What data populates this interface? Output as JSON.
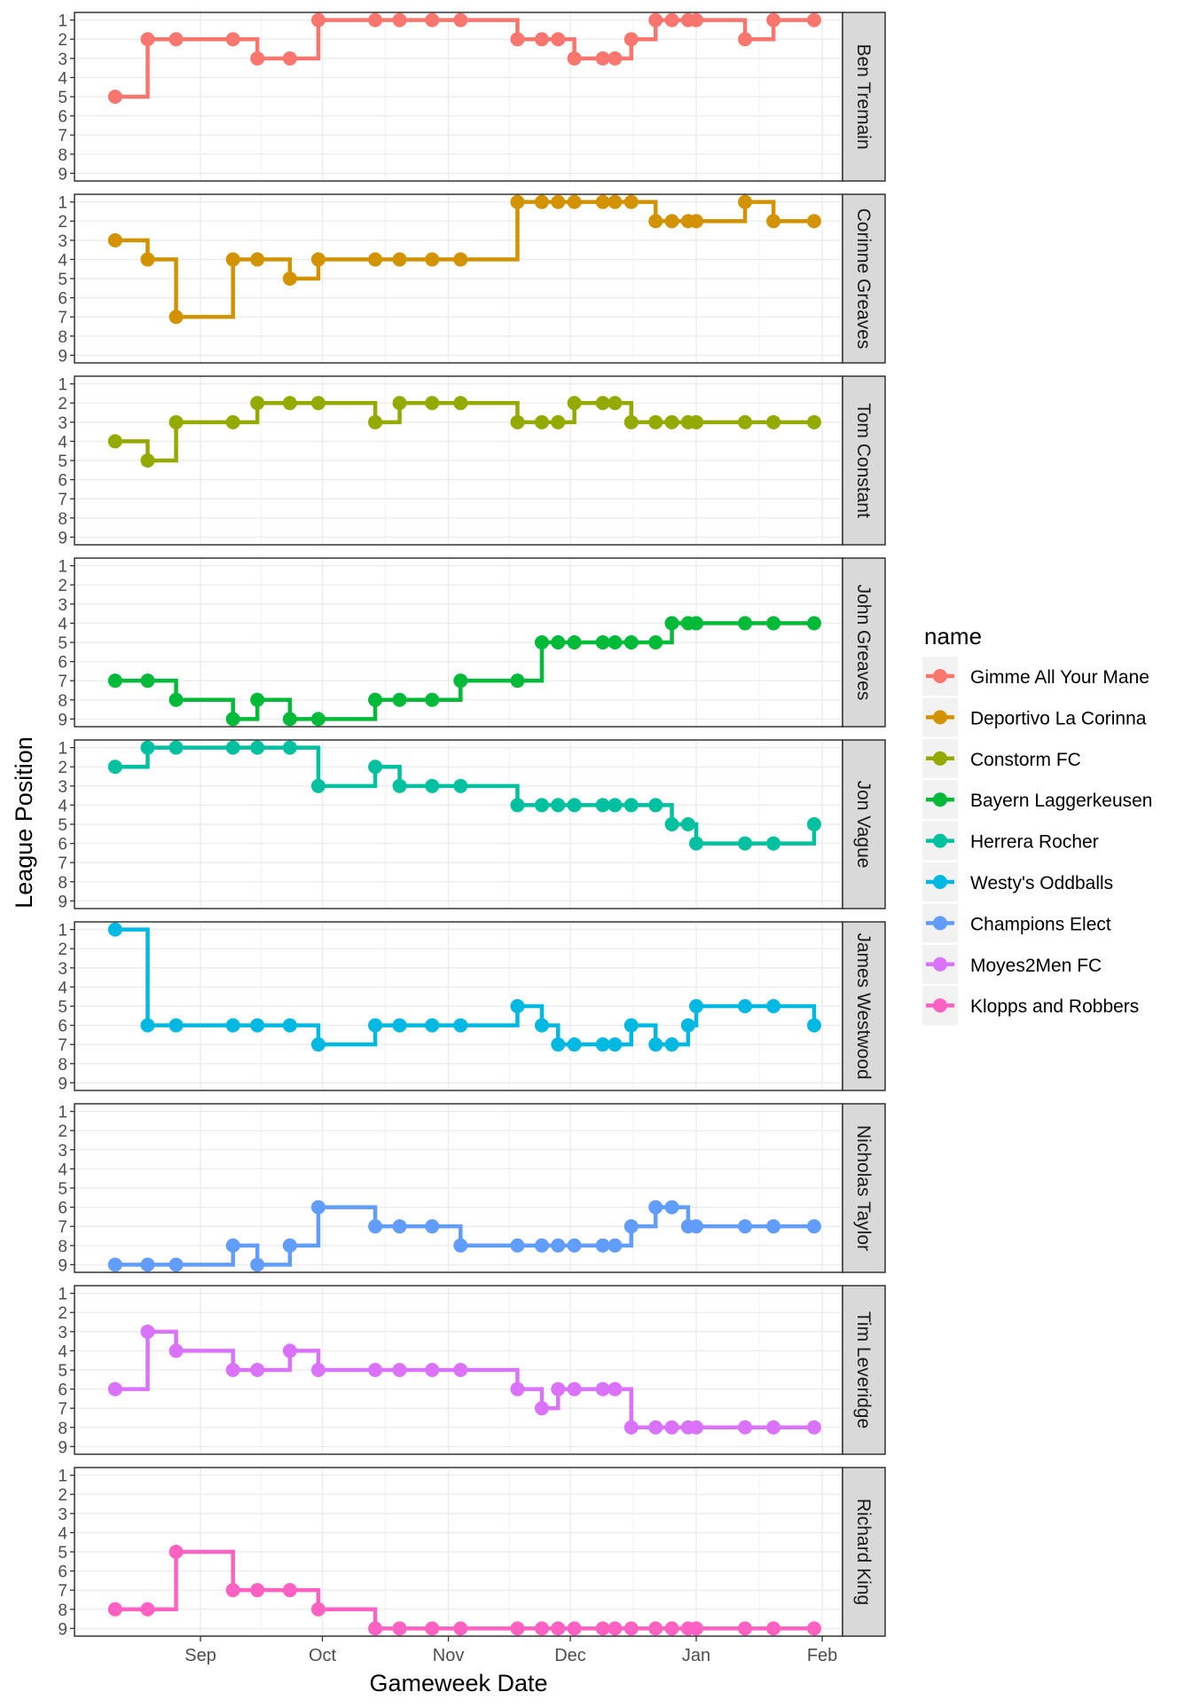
{
  "chart_data": {
    "type": "line",
    "step": "hv",
    "facet": "rows",
    "xlabel": "Gameweek Date",
    "ylabel": "League Position",
    "legend_title": "name",
    "legend_position": "right",
    "x_ticks": [
      {
        "date": "2017-09-01",
        "label": "Sep"
      },
      {
        "date": "2017-10-01",
        "label": "Oct"
      },
      {
        "date": "2017-11-01",
        "label": "Nov"
      },
      {
        "date": "2017-12-01",
        "label": "Dec"
      },
      {
        "date": "2018-01-01",
        "label": "Jan"
      },
      {
        "date": "2018-02-01",
        "label": "Feb"
      }
    ],
    "xlim": [
      "2017-08-01",
      "2018-02-06"
    ],
    "y_ticks": [
      1,
      2,
      3,
      4,
      5,
      6,
      7,
      8,
      9
    ],
    "y_reversed": true,
    "ylim": [
      0.6,
      9.4
    ],
    "x": [
      "2017-08-11",
      "2017-08-19",
      "2017-08-26",
      "2017-09-09",
      "2017-09-15",
      "2017-09-23",
      "2017-09-30",
      "2017-10-14",
      "2017-10-20",
      "2017-10-28",
      "2017-11-04",
      "2017-11-18",
      "2017-11-24",
      "2017-11-28",
      "2017-12-02",
      "2017-12-09",
      "2017-12-12",
      "2017-12-16",
      "2017-12-22",
      "2017-12-26",
      "2017-12-30",
      "2018-01-01",
      "2018-01-13",
      "2018-01-20",
      "2018-01-30"
    ],
    "series": [
      {
        "name": "Gimme All Your Mane",
        "facet": "Ben Tremain",
        "color": "#F8766D",
        "values": [
          5,
          2,
          2,
          2,
          3,
          3,
          1,
          1,
          1,
          1,
          1,
          2,
          2,
          2,
          3,
          3,
          3,
          2,
          1,
          1,
          1,
          1,
          2,
          1,
          1
        ]
      },
      {
        "name": "Deportivo La Corinna",
        "facet": "Corinne Greaves",
        "color": "#D39200",
        "values": [
          3,
          4,
          7,
          4,
          4,
          5,
          4,
          4,
          4,
          4,
          4,
          1,
          1,
          1,
          1,
          1,
          1,
          1,
          2,
          2,
          2,
          2,
          1,
          2,
          2
        ]
      },
      {
        "name": "Constorm FC",
        "facet": "Tom Constant",
        "color": "#93AA00",
        "values": [
          4,
          5,
          3,
          3,
          2,
          2,
          2,
          3,
          2,
          2,
          2,
          3,
          3,
          3,
          2,
          2,
          2,
          3,
          3,
          3,
          3,
          3,
          3,
          3,
          3
        ]
      },
      {
        "name": "Bayern Laggerkeusen",
        "facet": "John Greaves",
        "color": "#00BA38",
        "values": [
          7,
          7,
          8,
          9,
          8,
          9,
          9,
          8,
          8,
          8,
          7,
          7,
          5,
          5,
          5,
          5,
          5,
          5,
          5,
          4,
          4,
          4,
          4,
          4,
          4
        ]
      },
      {
        "name": "Herrera Rocher",
        "facet": "Jon Vague",
        "color": "#00C19F",
        "values": [
          2,
          1,
          1,
          1,
          1,
          1,
          3,
          2,
          3,
          3,
          3,
          4,
          4,
          4,
          4,
          4,
          4,
          4,
          4,
          5,
          5,
          6,
          6,
          6,
          5
        ]
      },
      {
        "name": "Westy's Oddballs",
        "facet": "James Westwood",
        "color": "#00B9E3",
        "values": [
          1,
          6,
          6,
          6,
          6,
          6,
          7,
          6,
          6,
          6,
          6,
          5,
          6,
          7,
          7,
          7,
          7,
          6,
          7,
          7,
          6,
          5,
          5,
          5,
          6
        ]
      },
      {
        "name": "Champions Elect",
        "facet": "Nicholas Taylor",
        "color": "#619CFF",
        "values": [
          9,
          9,
          9,
          8,
          9,
          8,
          6,
          7,
          7,
          7,
          8,
          8,
          8,
          8,
          8,
          8,
          8,
          7,
          6,
          6,
          7,
          7,
          7,
          7,
          7
        ]
      },
      {
        "name": "Moyes2Men FC",
        "facet": "Tim Leveridge",
        "color": "#DB72FB",
        "values": [
          6,
          3,
          4,
          5,
          5,
          4,
          5,
          5,
          5,
          5,
          5,
          6,
          7,
          6,
          6,
          6,
          6,
          8,
          8,
          8,
          8,
          8,
          8,
          8,
          8
        ]
      },
      {
        "name": "Klopps and Robbers",
        "facet": "Richard King",
        "color": "#FF61C3",
        "values": [
          8,
          8,
          5,
          7,
          7,
          7,
          8,
          9,
          9,
          9,
          9,
          9,
          9,
          9,
          9,
          9,
          9,
          9,
          9,
          9,
          9,
          9,
          9,
          9,
          9
        ]
      }
    ],
    "panel_border_color": "#333333",
    "strip_fill": "#D9D9D9",
    "grid": true
  }
}
